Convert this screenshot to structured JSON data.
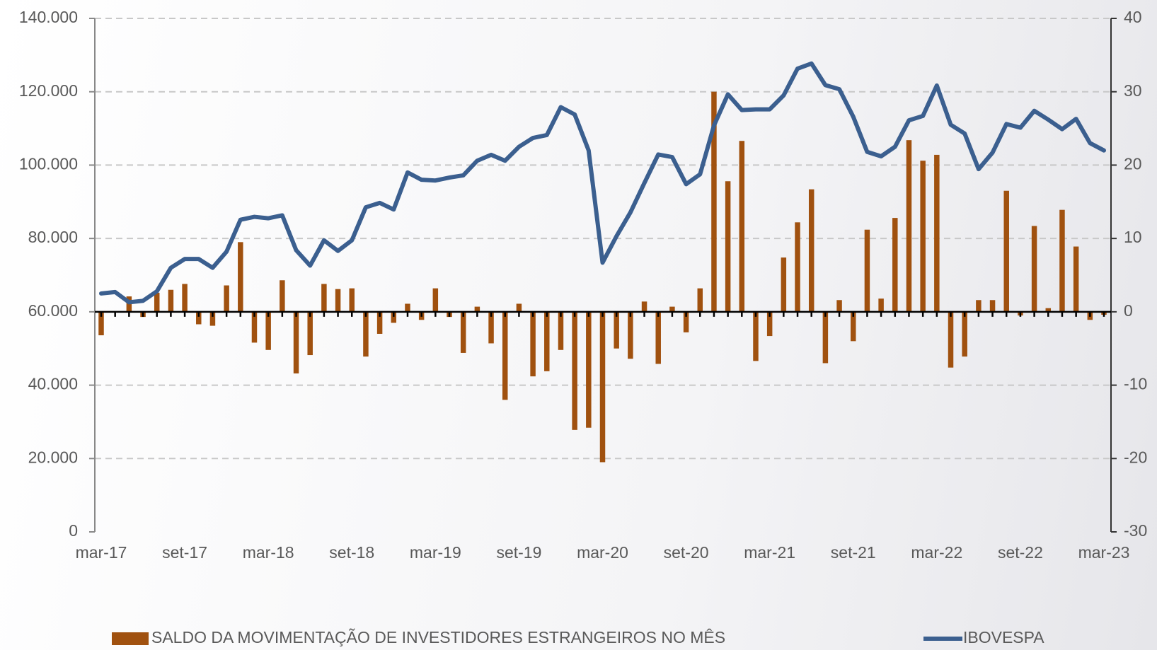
{
  "chart_data": {
    "type": "bar-line",
    "categories": [
      "mar-17",
      null,
      null,
      null,
      null,
      null,
      "set-17",
      null,
      null,
      null,
      null,
      null,
      "mar-18",
      null,
      null,
      null,
      null,
      null,
      "set-18",
      null,
      null,
      null,
      null,
      null,
      "mar-19",
      null,
      null,
      null,
      null,
      null,
      "set-19",
      null,
      null,
      null,
      null,
      null,
      "mar-20",
      null,
      null,
      null,
      null,
      null,
      "set-20",
      null,
      null,
      null,
      null,
      null,
      "mar-21",
      null,
      null,
      null,
      null,
      null,
      "set-21",
      null,
      null,
      null,
      null,
      null,
      "mar-22",
      null,
      null,
      null,
      null,
      null,
      "set-22",
      null,
      null,
      null,
      null,
      null,
      "mar-23"
    ],
    "series": [
      {
        "name": "SALDO DA MOVIMENTAÇÃO DE INVESTIDORES ESTRANGEIROS NO MÊS",
        "type": "bar",
        "axis": "y2",
        "color": "#a0510f",
        "values": [
          -3.2,
          0,
          2.1,
          -0.7,
          2.6,
          3.0,
          3.8,
          -1.7,
          -1.9,
          3.6,
          9.5,
          -4.2,
          -5.2,
          4.3,
          -8.4,
          -5.9,
          3.8,
          3.1,
          3.2,
          -6.1,
          -3.0,
          -1.5,
          1.1,
          -1.1,
          3.2,
          -0.7,
          -5.6,
          0.7,
          -4.3,
          -12.0,
          1.1,
          -8.8,
          -8.1,
          -5.2,
          -16.1,
          -15.8,
          -20.5,
          -5.0,
          -6.4,
          1.4,
          -7.1,
          0.7,
          -2.8,
          3.2,
          30.0,
          17.8,
          23.3,
          -6.7,
          -3.3,
          7.4,
          12.2,
          16.7,
          -7.0,
          1.6,
          -4.0,
          11.2,
          1.8,
          12.8,
          23.4,
          20.6,
          21.4,
          -7.6,
          -6.1,
          1.6,
          1.6,
          16.5,
          -0.5,
          11.7,
          0.5,
          13.9,
          8.9,
          -1.1,
          -0.4
        ]
      },
      {
        "name": "IBOVESPA",
        "type": "line",
        "color": "#3b5f8f",
        "values": [
          65000,
          65400,
          62600,
          63000,
          65600,
          72000,
          74400,
          74400,
          72000,
          76400,
          85100,
          85900,
          85500,
          86300,
          76800,
          72600,
          79500,
          76600,
          79500,
          88500,
          89700,
          87900,
          98000,
          96000,
          95800,
          96600,
          97200,
          101200,
          102800,
          101200,
          105000,
          107400,
          108200,
          115800,
          113800,
          104000,
          73400,
          80600,
          87100,
          95100,
          102900,
          102200,
          94800,
          97500,
          110800,
          119300,
          115000,
          115200,
          115200,
          119000,
          126300,
          127700,
          121800,
          120700,
          113200,
          103600,
          102400,
          105000,
          112200,
          113400,
          121700,
          111000,
          108600,
          98900,
          103400,
          111200,
          110200,
          114800,
          112400,
          109800,
          112600,
          106000,
          104000
        ]
      }
    ],
    "ylim": [
      0,
      140000
    ],
    "yticks": [
      0,
      {
        "value": 20000,
        "label": "20.000"
      },
      {
        "value": 40000,
        "label": "40.000"
      },
      {
        "value": 60000,
        "label": "60.000"
      },
      {
        "value": 80000,
        "label": "80.000"
      },
      {
        "value": 100000,
        "label": "100.000"
      },
      {
        "value": 120000,
        "label": "120.000"
      },
      {
        "value": 140000,
        "label": "140.000"
      }
    ],
    "y2lim": [
      -30,
      40
    ],
    "y2ticks": [
      -30,
      -20,
      -10,
      0,
      10,
      20,
      30,
      40
    ],
    "grid": true,
    "legend": "bottom"
  }
}
